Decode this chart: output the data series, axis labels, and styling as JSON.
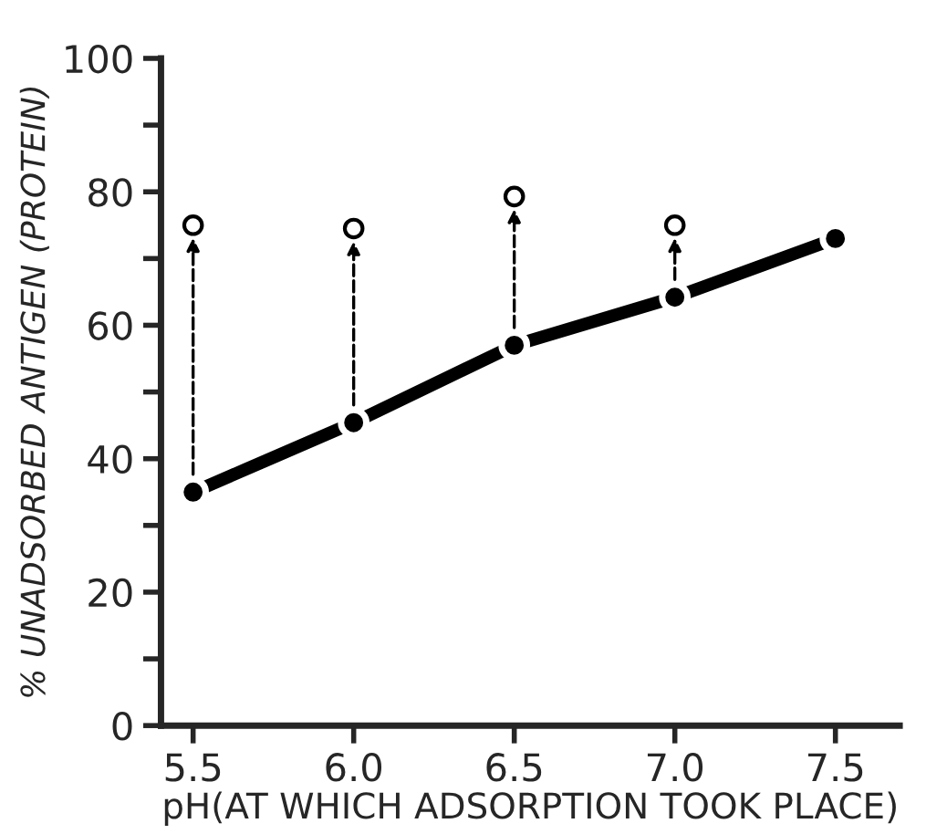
{
  "chart_data": {
    "type": "line",
    "xlabel": "pH(AT WHICH ADSORPTION TOOK PLACE)",
    "ylabel": "% UNADSORBED ANTIGEN (PROTEIN)",
    "x": [
      5.5,
      6.0,
      6.5,
      7.0,
      7.5
    ],
    "series": [
      {
        "color": "#000000",
        "marker": "circle",
        "line_style": "solid",
        "values": [
          35,
          45.4,
          57,
          64.2,
          73
        ]
      },
      {
        "type": "scatter",
        "color": "#000000",
        "marker": "circle",
        "values": [
          75,
          74.5,
          79.3,
          75,
          null
        ]
      }
    ],
    "xlim": [
      5.4,
      7.7
    ],
    "xticks": [
      {
        "value": 5.5,
        "label": "5.5"
      },
      {
        "value": 6.0,
        "label": "6.0"
      },
      {
        "value": 6.5,
        "label": "6.5"
      },
      {
        "value": 7.0,
        "label": "7.0"
      },
      {
        "value": 7.5,
        "label": "7.5"
      }
    ],
    "ylim": [
      0,
      100
    ],
    "yticks": [
      0,
      {
        "value": 10,
        "label": null
      },
      20,
      {
        "value": 30,
        "label": null
      },
      40,
      {
        "value": 50,
        "label": null
      },
      60,
      {
        "value": 70,
        "label": null
      },
      80,
      {
        "value": 90,
        "label": null
      },
      100
    ],
    "grid": false,
    "legend": false
  }
}
